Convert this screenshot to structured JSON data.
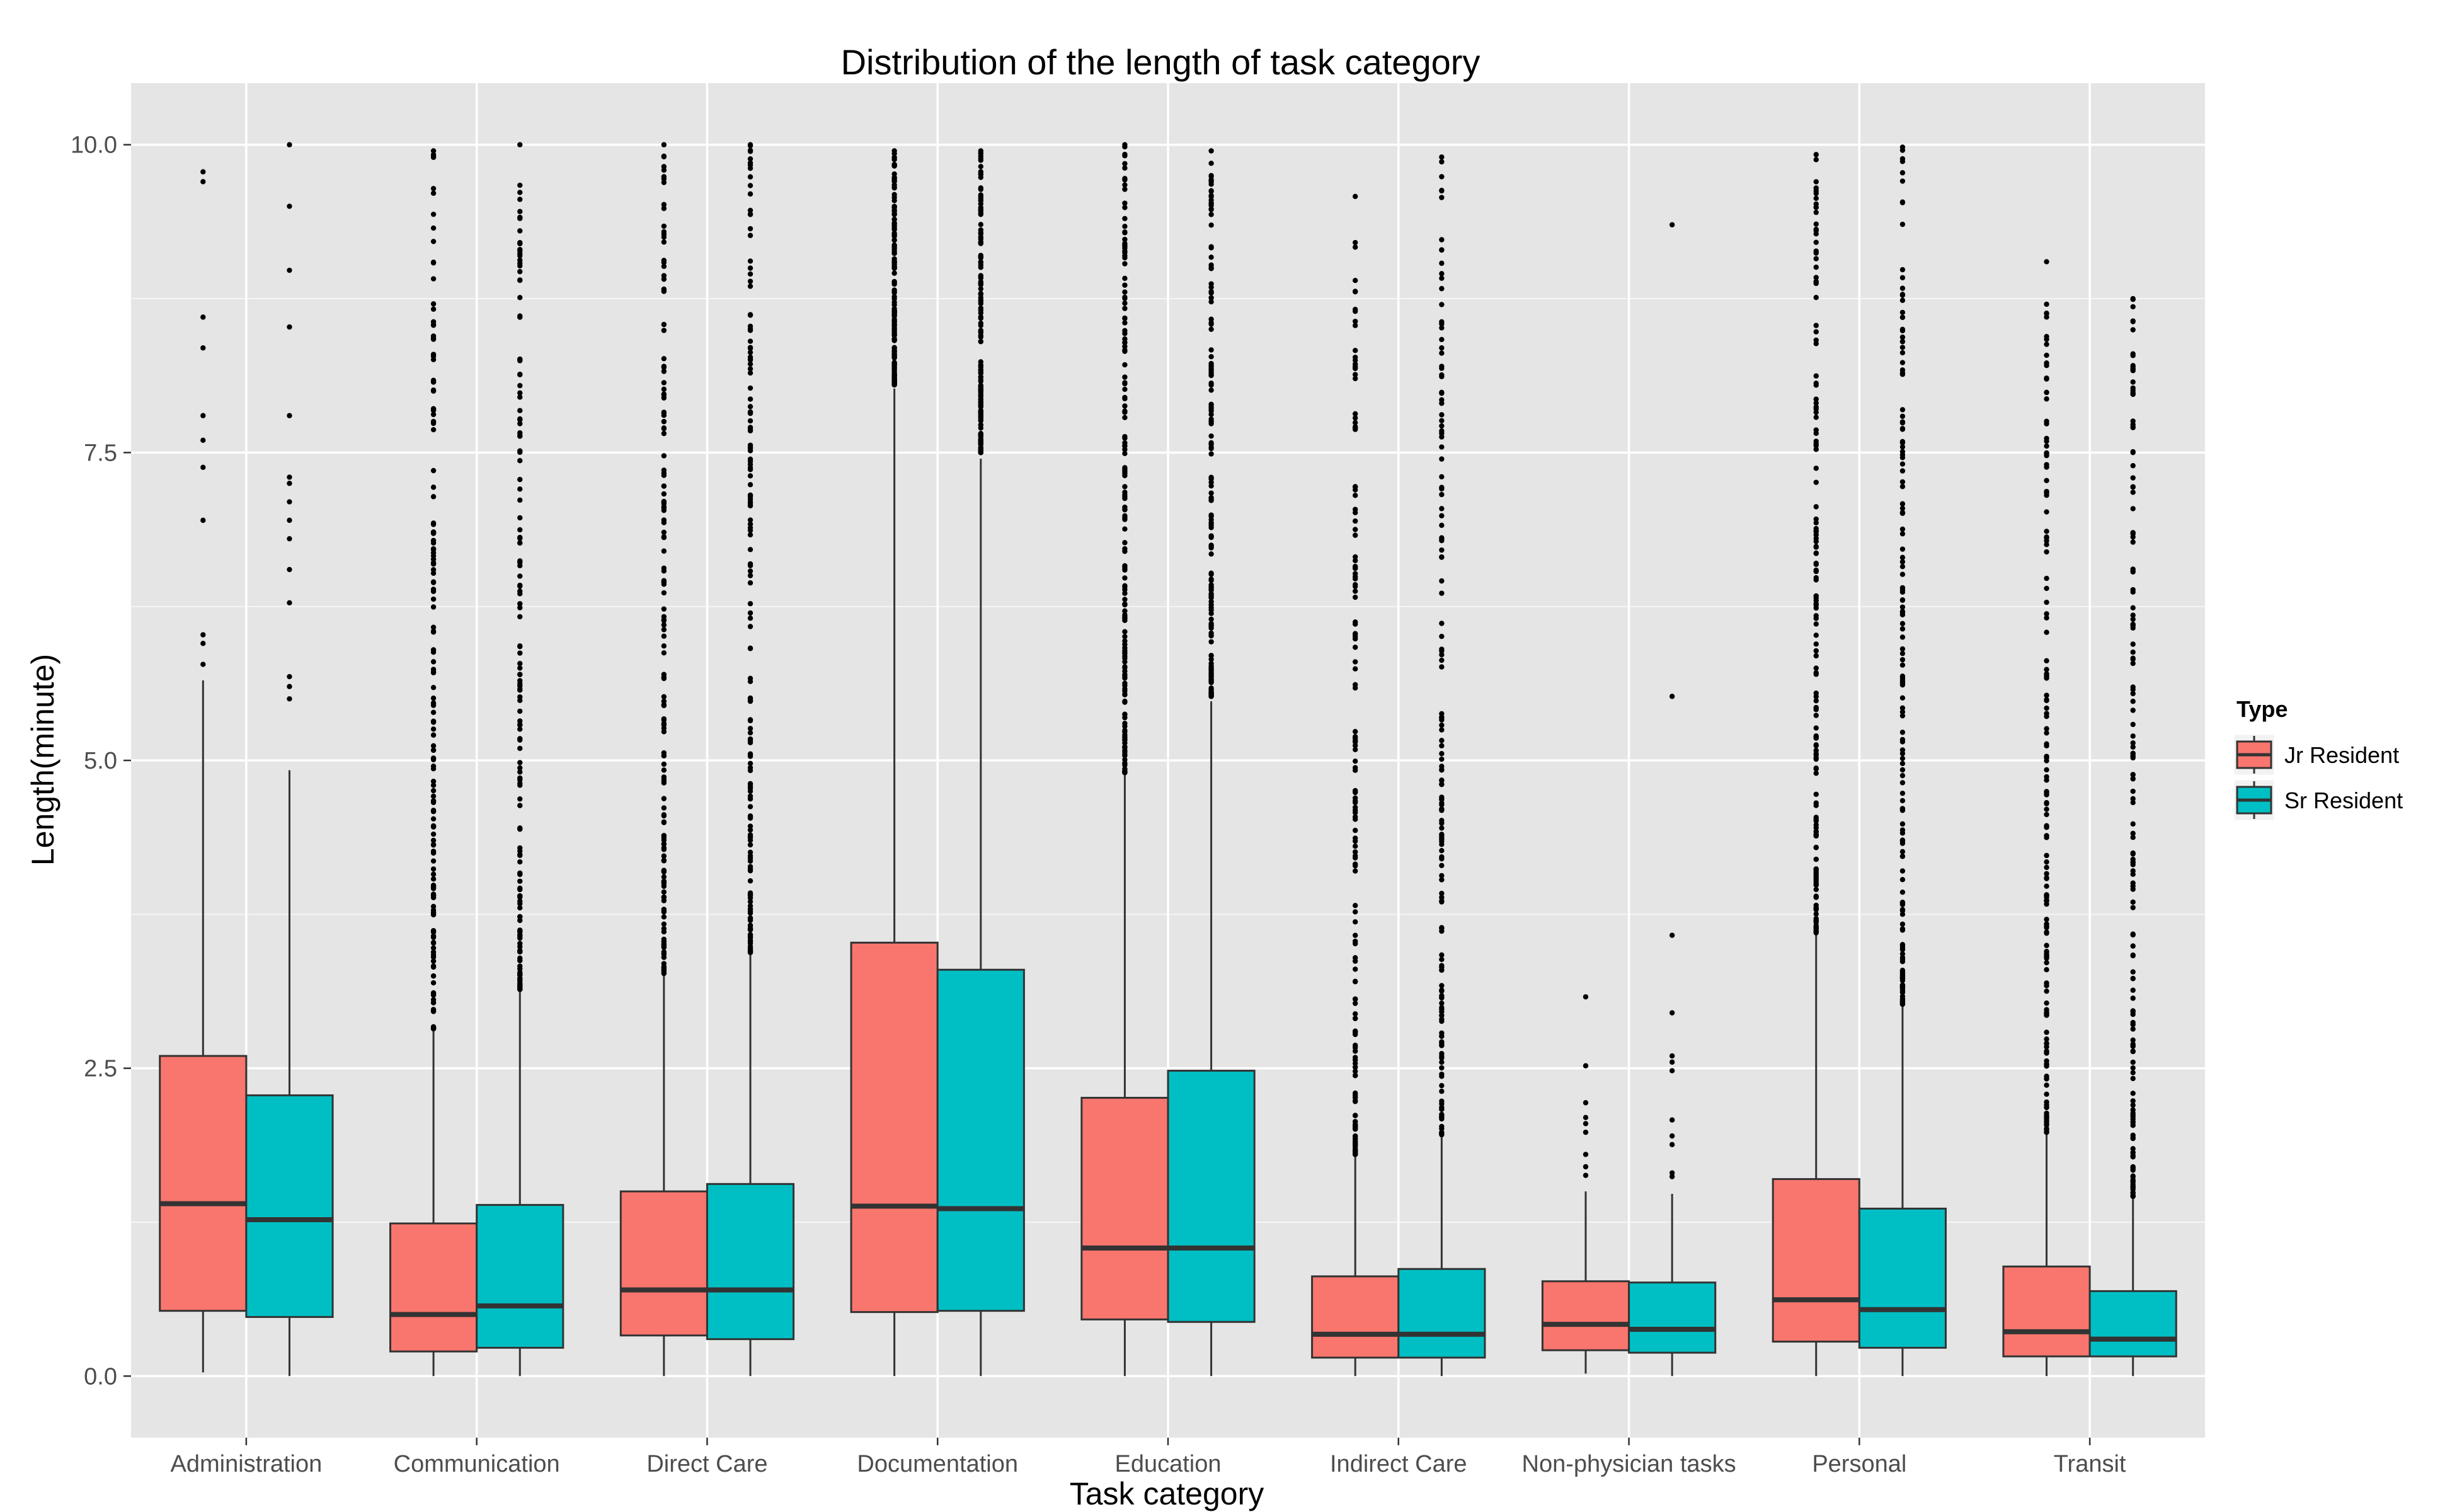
{
  "chart_data": {
    "type": "boxplot",
    "title": "Distribution of the length of task category",
    "xlabel": "Task category",
    "ylabel": "Length(minute)",
    "ylim": [
      -0.5,
      10.5
    ],
    "y_ticks": [
      "0.0",
      "2.5",
      "5.0",
      "7.5",
      "10.0"
    ],
    "grid": true,
    "legend": {
      "title": "Type",
      "position": "right"
    },
    "categories": [
      "Administration",
      "Communication",
      "Direct Care",
      "Documentation",
      "Education",
      "Indirect Care",
      "Non-physician tasks",
      "Personal",
      "Transit"
    ],
    "series": [
      {
        "name": "Jr Resident",
        "color": "#F8766D",
        "boxes": [
          {
            "min": 0.03,
            "q1": 0.53,
            "median": 1.4,
            "q3": 2.6,
            "max": 5.65,
            "outliers": [
              5.78,
              5.95,
              6.02,
              6.95,
              7.38,
              7.6,
              7.8,
              8.35,
              8.6,
              9.7,
              9.78
            ]
          },
          {
            "min": 0.0,
            "q1": 0.2,
            "median": 0.5,
            "q3": 1.24,
            "max": 2.8,
            "outliers_range": [
              2.82,
              9.95
            ]
          },
          {
            "min": 0.0,
            "q1": 0.33,
            "median": 0.7,
            "q3": 1.5,
            "max": 3.25,
            "outliers_range": [
              3.27,
              10.0
            ]
          },
          {
            "min": 0.0,
            "q1": 0.52,
            "median": 1.38,
            "q3": 3.52,
            "max": 8.02,
            "outliers_range": [
              8.05,
              9.95
            ]
          },
          {
            "min": 0.0,
            "q1": 0.46,
            "median": 1.04,
            "q3": 2.26,
            "max": 4.88,
            "outliers_range": [
              4.9,
              10.0
            ]
          },
          {
            "min": 0.0,
            "q1": 0.15,
            "median": 0.34,
            "q3": 0.81,
            "max": 1.78,
            "outliers_range": [
              1.8,
              9.58
            ]
          },
          {
            "min": 0.02,
            "q1": 0.21,
            "median": 0.42,
            "q3": 0.77,
            "max": 1.5,
            "outliers": [
              1.63,
              1.7,
              1.8,
              1.98,
              2.05,
              2.1,
              2.22,
              2.52,
              3.08
            ]
          },
          {
            "min": 0.0,
            "q1": 0.28,
            "median": 0.62,
            "q3": 1.6,
            "max": 3.58,
            "outliers_range": [
              3.6,
              9.92
            ]
          },
          {
            "min": 0.0,
            "q1": 0.16,
            "median": 0.36,
            "q3": 0.89,
            "max": 1.96,
            "outliers_range": [
              1.98,
              9.05
            ]
          }
        ]
      },
      {
        "name": "Sr Resident",
        "color": "#00BFC4",
        "boxes": [
          {
            "min": 0.0,
            "q1": 0.48,
            "median": 1.27,
            "q3": 2.28,
            "max": 4.92,
            "outliers": [
              5.5,
              5.6,
              5.68,
              6.28,
              6.55,
              6.8,
              6.95,
              7.1,
              7.25,
              7.3,
              7.8,
              8.52,
              8.98,
              9.5,
              10.0
            ]
          },
          {
            "min": 0.0,
            "q1": 0.23,
            "median": 0.57,
            "q3": 1.39,
            "max": 3.12,
            "outliers_range": [
              3.14,
              10.0
            ]
          },
          {
            "min": 0.0,
            "q1": 0.3,
            "median": 0.7,
            "q3": 1.56,
            "max": 3.42,
            "outliers_range": [
              3.44,
              10.0
            ]
          },
          {
            "min": 0.0,
            "q1": 0.53,
            "median": 1.36,
            "q3": 3.3,
            "max": 7.45,
            "outliers_range": [
              7.5,
              9.95
            ]
          },
          {
            "min": 0.0,
            "q1": 0.44,
            "median": 1.04,
            "q3": 2.48,
            "max": 5.48,
            "outliers_range": [
              5.52,
              9.95
            ]
          },
          {
            "min": 0.0,
            "q1": 0.15,
            "median": 0.34,
            "q3": 0.87,
            "max": 1.94,
            "outliers_range": [
              1.96,
              9.9
            ]
          },
          {
            "min": 0.0,
            "q1": 0.19,
            "median": 0.38,
            "q3": 0.76,
            "max": 1.48,
            "outliers": [
              1.62,
              1.65,
              1.88,
              1.95,
              2.08,
              2.48,
              2.55,
              2.6,
              2.95,
              3.58,
              5.52,
              9.35
            ]
          },
          {
            "min": 0.0,
            "q1": 0.23,
            "median": 0.54,
            "q3": 1.36,
            "max": 3.0,
            "outliers_range": [
              3.02,
              9.98
            ]
          },
          {
            "min": 0.0,
            "q1": 0.16,
            "median": 0.3,
            "q3": 0.69,
            "max": 1.44,
            "outliers_range": [
              1.46,
              8.75
            ]
          }
        ]
      }
    ]
  }
}
